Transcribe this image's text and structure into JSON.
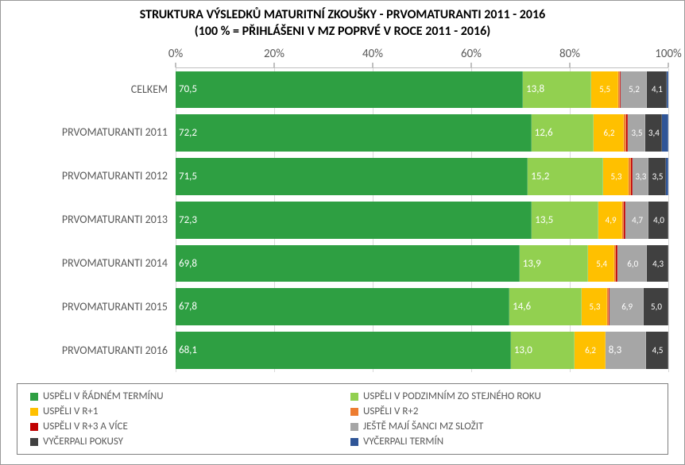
{
  "chart": {
    "type": "stacked-bar-horizontal",
    "title_line1": "STRUKTURA VÝSLEDKŮ MATURITNÍ ZKOUŠKY - PRVOMATURANTI 2011 - 2016",
    "title_line2": "(100 % = PŘIHLÁŠENI V MZ POPRVÉ V ROCE 2011 - 2016)",
    "title_fontsize": 16,
    "background_color": "#ffffff",
    "grid_color": "#d9d9d9",
    "axis_color": "#808080",
    "label_color": "#595959",
    "label_fontsize": 14,
    "value_label_color": "#ffffff",
    "value_label_fontsize": 13,
    "xlim": [
      0,
      100
    ],
    "xtick_step": 20,
    "xticks": [
      "0%",
      "20%",
      "40%",
      "60%",
      "80%",
      "100%"
    ],
    "categories": [
      "CELKEM",
      "PRVOMATURANTI 2011",
      "PRVOMATURANTI 2012",
      "PRVOMATURANTI 2013",
      "PRVOMATURANTI 2014",
      "PRVOMATURANTI 2015",
      "PRVOMATURANTI 2016"
    ],
    "series": [
      {
        "name": "USPĚLI V ŘÁDNÉM TERMÍNU",
        "color": "#2e9f42"
      },
      {
        "name": "USPĚLI V PODZIMNÍM ZO STEJNÉHO ROKU",
        "color": "#92d050"
      },
      {
        "name": "USPĚLI V R+1",
        "color": "#ffc000"
      },
      {
        "name": "USPĚLI V R+2",
        "color": "#ed7d31"
      },
      {
        "name": "USPĚLI V R+3 A VÍCE",
        "color": "#c00000"
      },
      {
        "name": "JEŠTĚ MAJÍ ŠANCI MZ SLOŽIT",
        "color": "#a6a6a6"
      },
      {
        "name": "VYČERPALI POKUSY",
        "color": "#404040"
      },
      {
        "name": "VYČERPALI TERMÍN",
        "color": "#2f5597"
      }
    ],
    "data": [
      {
        "values": [
          70.5,
          13.8,
          5.5,
          0.3,
          0.3,
          5.2,
          4.1,
          0.3
        ],
        "labels": [
          "70,5",
          "13,8",
          "5,5",
          "",
          "",
          "5,2",
          "4,1",
          ""
        ]
      },
      {
        "values": [
          72.2,
          12.6,
          6.2,
          0.5,
          0.3,
          3.5,
          3.4,
          1.3
        ],
        "labels": [
          "72,2",
          "12,6",
          "6,2",
          "",
          "",
          "3,5",
          "3,4",
          ""
        ]
      },
      {
        "values": [
          71.5,
          15.2,
          5.3,
          0.4,
          0.3,
          3.3,
          3.5,
          0.5
        ],
        "labels": [
          "71,5",
          "15,2",
          "5,3",
          "",
          "",
          "3,3",
          "3,5",
          ""
        ]
      },
      {
        "values": [
          72.3,
          13.5,
          4.9,
          0.3,
          0.3,
          4.7,
          4.0,
          0.0
        ],
        "labels": [
          "72,3",
          "13,5",
          "4,9",
          "",
          "",
          "4,7",
          "4,0",
          ""
        ]
      },
      {
        "values": [
          69.8,
          13.9,
          5.4,
          0.3,
          0.3,
          6.0,
          4.3,
          0.0
        ],
        "labels": [
          "69,8",
          "13,9",
          "5,4",
          "",
          "",
          "6,0",
          "4,3",
          ""
        ]
      },
      {
        "values": [
          67.8,
          14.6,
          5.3,
          0.3,
          0.1,
          6.9,
          5.0,
          0.0
        ],
        "labels": [
          "67,8",
          "14,6",
          "5,3",
          "",
          "",
          "6,9",
          "5,0",
          ""
        ]
      },
      {
        "values": [
          68.1,
          13.0,
          6.2,
          0.0,
          0.0,
          8.3,
          4.5,
          0.0
        ],
        "labels": [
          "68,1",
          "13,0",
          "6,2",
          "",
          "",
          "8,3",
          "4,5",
          ""
        ]
      }
    ],
    "bar_gap": 0.18
  }
}
